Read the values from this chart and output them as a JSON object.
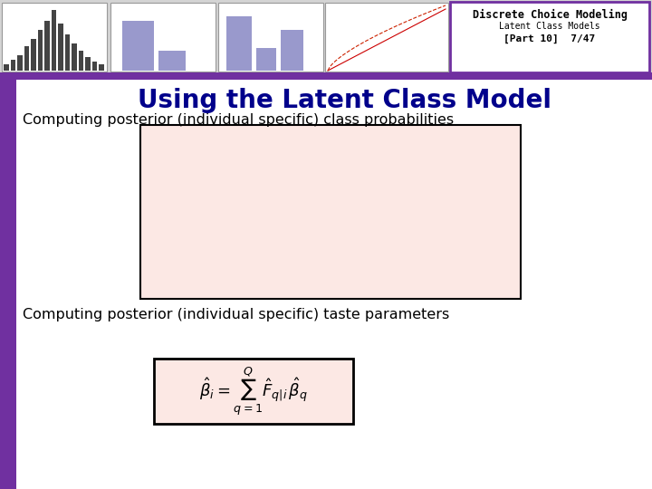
{
  "title": "Using the Latent Class Model",
  "subtitle_line1": "Discrete Choice Modeling",
  "subtitle_line2": "Latent Class Models",
  "subtitle_line3": "[Part 10]  7/47",
  "text1": "Computing posterior (individual specific) class probabilities",
  "text2": "Computing posterior (individual specific) taste parameters",
  "formula": "$\\hat{\\beta}_i = \\sum_{q=1}^{Q} \\hat{F}_{q|i}\\, \\hat{\\beta}_q$",
  "bg_color": "#ffffff",
  "header_bg": "#ffffff",
  "header_border": "#7030a0",
  "title_color": "#00008b",
  "text_color": "#000000",
  "pink_box_color": "#fce8e4",
  "pink_box_border": "#000000",
  "formula_box_color": "#fce8e4",
  "formula_box_border": "#000000",
  "left_bar_color": "#7030a0",
  "header_strip_color": "#7030a0",
  "header_strip_color2": "#5050a0"
}
